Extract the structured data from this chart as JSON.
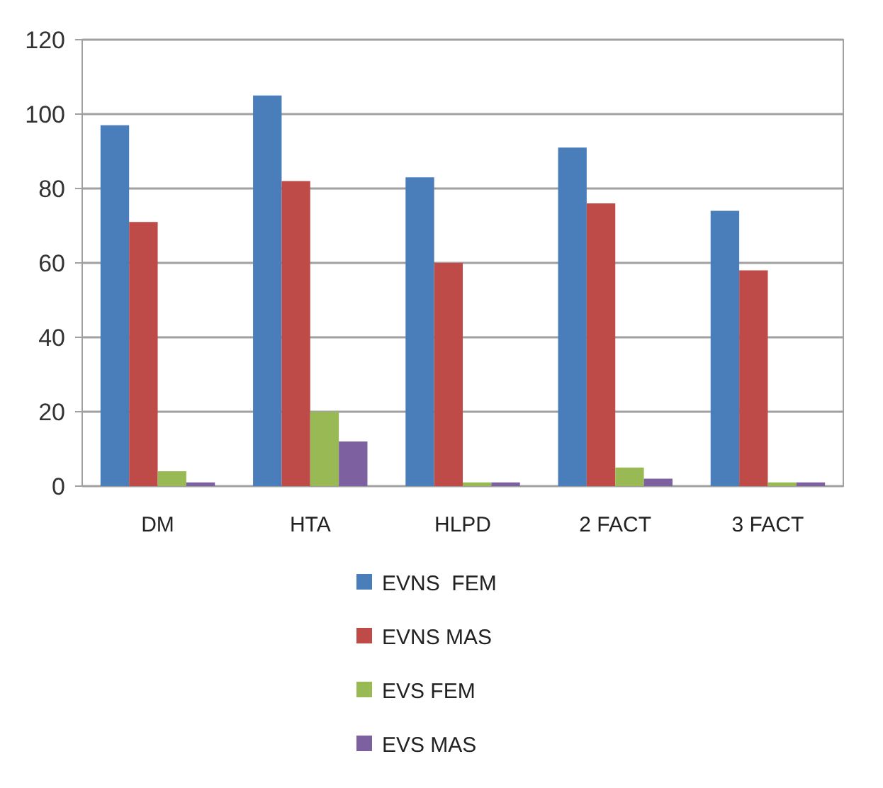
{
  "chart_data": {
    "type": "bar",
    "categories": [
      "DM",
      "HTA",
      "HLPD",
      "2 FACT",
      "3 FACT"
    ],
    "series": [
      {
        "name": "EVNS  FEM",
        "color": "#4a7ebb",
        "values": [
          97,
          105,
          83,
          91,
          74
        ]
      },
      {
        "name": "EVNS MAS",
        "color": "#be4b48",
        "values": [
          71,
          82,
          60,
          76,
          58
        ]
      },
      {
        "name": "EVS FEM",
        "color": "#98b954",
        "values": [
          4,
          20,
          1,
          5,
          1
        ]
      },
      {
        "name": "EVS MAS",
        "color": "#7d60a0",
        "values": [
          1,
          12,
          1,
          2,
          1
        ]
      }
    ],
    "ylim": [
      0,
      120
    ],
    "yticks": [
      0,
      20,
      40,
      60,
      80,
      100,
      120
    ],
    "grid": "y",
    "legend": "bottom"
  }
}
